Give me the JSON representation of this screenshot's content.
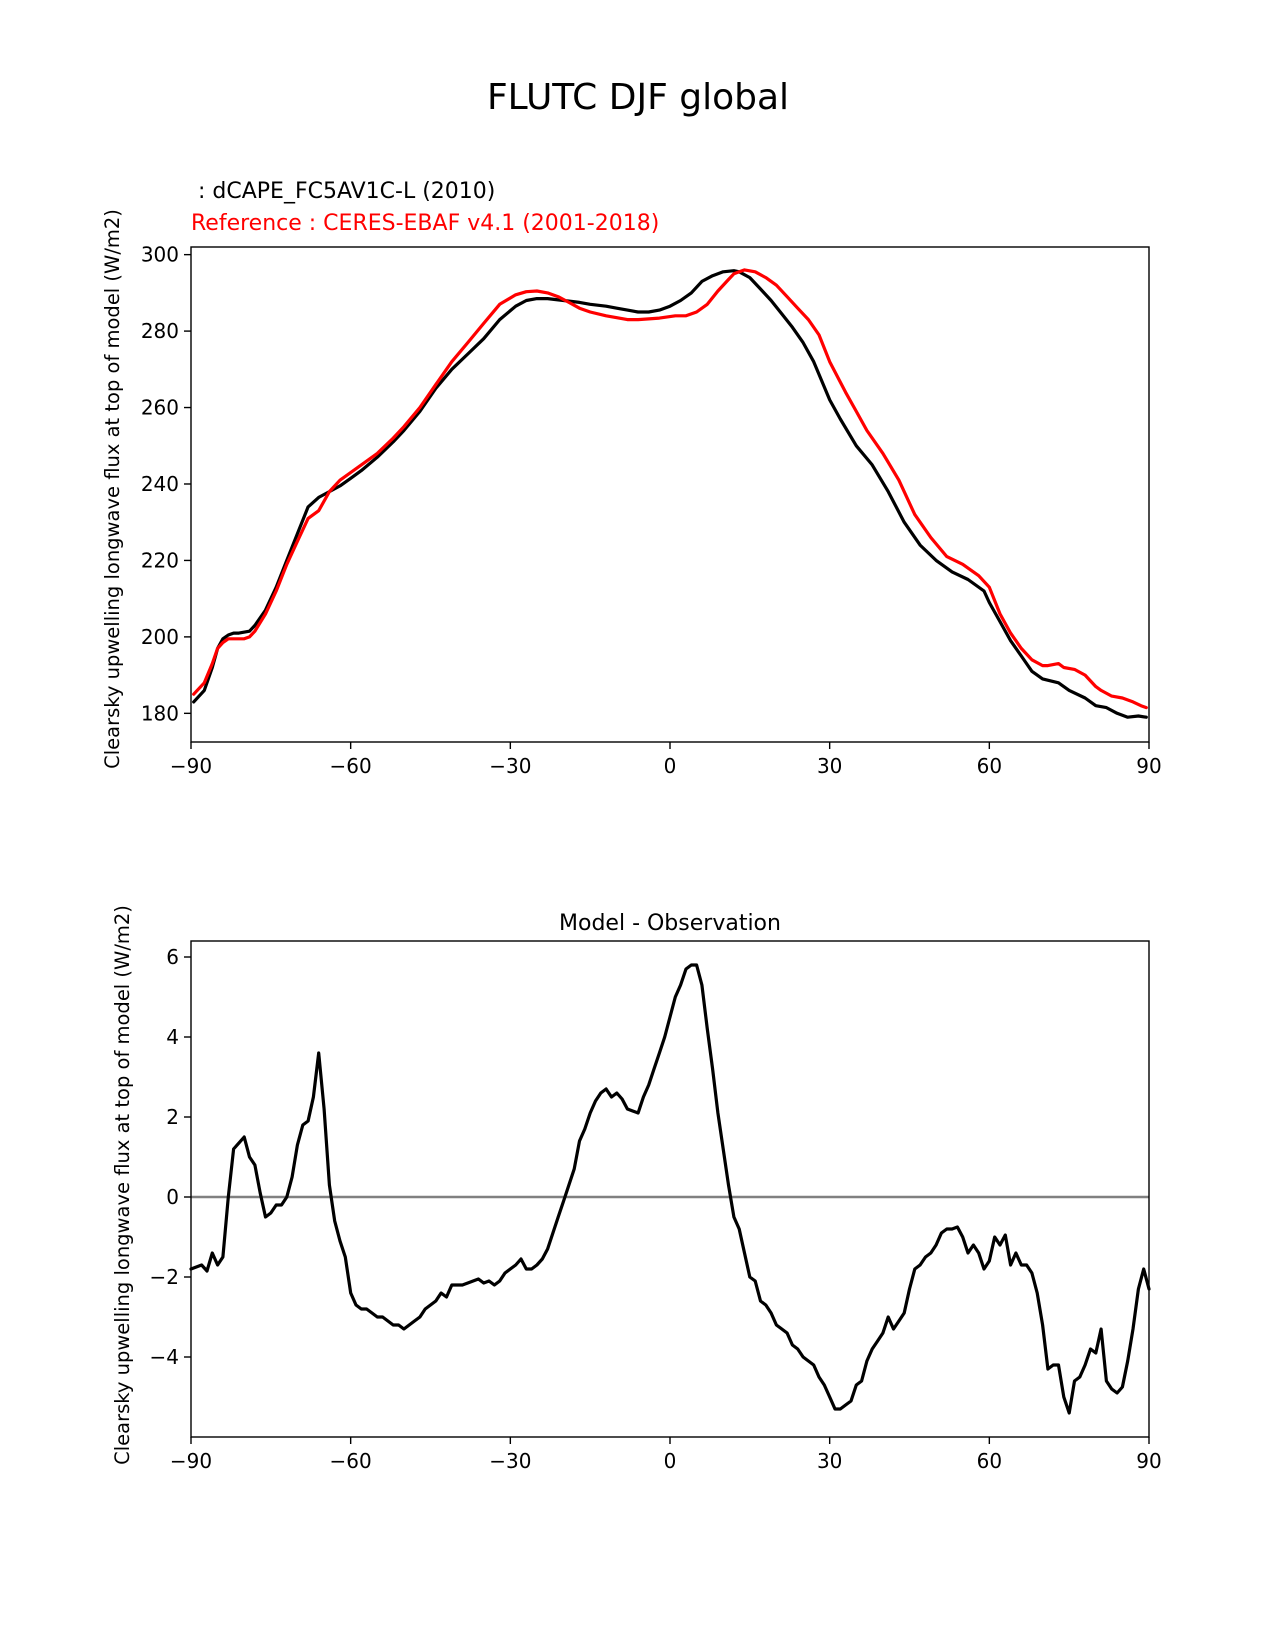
{
  "figure": {
    "suptitle": "FLUTC DJF global"
  },
  "colors": {
    "model": "#000000",
    "reference": "#ff0000",
    "zero_line": "#808080",
    "axis": "#000000"
  },
  "chart_data": [
    {
      "type": "line",
      "model_label": " : dCAPE_FC5AV1C-L (2010)",
      "reference_label": "Reference : CERES-EBAF v4.1 (2001-2018)",
      "title": "",
      "xlabel": "",
      "ylabel": "Clearsky upwelling longwave flux at top of model (W/m2)",
      "xlim": [
        -90,
        90
      ],
      "ylim": [
        172.5,
        302
      ],
      "xticks": [
        -90,
        -60,
        -30,
        0,
        30,
        60,
        90
      ],
      "xtick_labels": [
        "−90",
        "−60",
        "−30",
        "0",
        "30",
        "60",
        "90"
      ],
      "yticks": [
        180,
        200,
        220,
        240,
        260,
        280,
        300
      ],
      "ytick_labels": [
        "180",
        "200",
        "220",
        "240",
        "260",
        "280",
        "300"
      ],
      "grid": false,
      "series": [
        {
          "name": "dCAPE_FC5AV1C-L (2010)",
          "color": "#000000",
          "x": [
            -89.5,
            -87.5,
            -86,
            -85,
            -84,
            -83,
            -82,
            -81,
            -79,
            -78,
            -76,
            -74,
            -72,
            -70,
            -68,
            -66,
            -64,
            -62,
            -60,
            -58,
            -55,
            -52,
            -50,
            -47,
            -44,
            -41,
            -38,
            -35,
            -32,
            -29,
            -27,
            -25,
            -23,
            -20,
            -17,
            -15,
            -12,
            -10,
            -8,
            -6,
            -4,
            -2,
            0,
            2,
            4,
            6,
            8,
            10,
            12,
            13,
            15,
            17,
            19,
            21,
            23,
            25,
            27,
            30,
            32,
            35,
            38,
            41,
            44,
            47,
            50,
            53,
            56,
            59,
            60,
            62,
            64,
            66,
            68,
            70,
            73,
            75,
            78,
            80,
            82,
            84,
            86,
            88,
            89.5
          ],
          "y": [
            183,
            186,
            192,
            197,
            199.5,
            200.5,
            201,
            201,
            201.5,
            203,
            207,
            213,
            220,
            227,
            234,
            236.5,
            238,
            239.5,
            241.5,
            243.5,
            247,
            251,
            254,
            259,
            265,
            270,
            274,
            278,
            283,
            286.5,
            288,
            288.5,
            288.5,
            288,
            287.5,
            287,
            286.5,
            286,
            285.5,
            285,
            285,
            285.5,
            286.5,
            288,
            290,
            293,
            294.5,
            295.5,
            295.8,
            295.5,
            294,
            291,
            288,
            284.5,
            281,
            277,
            272,
            262,
            257,
            250,
            245,
            238,
            230,
            224,
            220,
            217,
            215,
            212,
            209,
            204,
            199,
            195,
            191,
            189,
            188,
            186,
            184,
            182,
            181.5,
            180,
            179,
            179.3,
            179
          ]
        },
        {
          "name": "CERES-EBAF v4.1 (2001-2018)",
          "color": "#ff0000",
          "x": [
            -89.5,
            -87.5,
            -86,
            -85,
            -84,
            -83,
            -82,
            -80,
            -79,
            -78,
            -76,
            -74,
            -72,
            -70,
            -68,
            -66,
            -64,
            -62,
            -60,
            -58,
            -55,
            -52,
            -50,
            -47,
            -44,
            -41,
            -38,
            -35,
            -32,
            -29,
            -27,
            -25,
            -23,
            -21,
            -19,
            -17,
            -15,
            -12,
            -10,
            -8,
            -6,
            -4,
            -2,
            0,
            1,
            3,
            5,
            7,
            9,
            11,
            12,
            14,
            16,
            18,
            20,
            22,
            24,
            26,
            28,
            30,
            33,
            35,
            37,
            40,
            43,
            46,
            49,
            52,
            55,
            58,
            60,
            62,
            64,
            66,
            68,
            70,
            71,
            73,
            74,
            76,
            78,
            80,
            81,
            83,
            85,
            87,
            88.5,
            89.5
          ],
          "y": [
            185,
            188,
            193,
            197,
            198.5,
            199.5,
            199.5,
            199.5,
            200,
            201.5,
            206,
            212,
            219,
            225,
            231,
            233,
            238,
            241,
            243,
            245,
            248,
            252,
            255,
            260,
            266,
            272,
            277,
            282,
            287,
            289.5,
            290.3,
            290.5,
            290,
            289,
            287.5,
            286,
            285,
            284,
            283.5,
            283,
            283,
            283.2,
            283.4,
            283.8,
            284,
            284,
            285,
            287,
            290.5,
            293.5,
            295,
            296,
            295.5,
            294,
            292,
            289,
            286,
            283,
            279,
            272,
            264,
            259,
            254,
            248,
            241,
            232,
            226,
            221,
            219,
            216,
            213,
            206,
            201,
            197,
            194,
            192.5,
            192.5,
            193,
            192,
            191.5,
            190,
            187,
            186,
            184.5,
            184,
            183,
            182,
            181.5
          ]
        }
      ]
    },
    {
      "type": "line",
      "title": "Model - Observation",
      "xlabel": "",
      "ylabel": "Clearsky upwelling longwave flux at top of model (W/m2)",
      "xlim": [
        -90,
        90
      ],
      "ylim": [
        -6,
        6.4
      ],
      "xticks": [
        -90,
        -60,
        -30,
        0,
        30,
        60,
        90
      ],
      "xtick_labels": [
        "−90",
        "−60",
        "−30",
        "0",
        "30",
        "60",
        "90"
      ],
      "yticks": [
        -4,
        -2,
        0,
        2,
        4,
        6
      ],
      "ytick_labels": [
        "−4",
        "−2",
        "0",
        "2",
        "4",
        "6"
      ],
      "zero_line": 0,
      "grid": false,
      "series": [
        {
          "name": "",
          "color": "#000000",
          "x": [
            -90,
            -88,
            -87,
            -86,
            -85,
            -84,
            -83,
            -82,
            -80,
            -79,
            -78,
            -77,
            -76,
            -75,
            -74,
            -73,
            -72,
            -71,
            -70,
            -69,
            -68,
            -67,
            -66,
            -65,
            -64,
            -63,
            -62,
            -61,
            -60,
            -59,
            -58,
            -57,
            -56,
            -55,
            -54,
            -53,
            -52,
            -51,
            -50,
            -49,
            -48,
            -47,
            -46,
            -45,
            -44,
            -43,
            -42,
            -41,
            -40,
            -39,
            -38,
            -37,
            -36,
            -35,
            -34,
            -33,
            -32,
            -31,
            -30,
            -29,
            -28,
            -27,
            -26,
            -25,
            -24,
            -23,
            -22,
            -21,
            -20,
            -19,
            -18,
            -17,
            -16,
            -15,
            -14,
            -13,
            -12,
            -11,
            -10,
            -9,
            -8,
            -7,
            -6,
            -5,
            -4,
            -3,
            -2,
            -1,
            0,
            1,
            2,
            3,
            4,
            5,
            6,
            7,
            8,
            9,
            10,
            11,
            12,
            13,
            14,
            15,
            16,
            17,
            18,
            19,
            20,
            21,
            22,
            23,
            24,
            25,
            26,
            27,
            28,
            29,
            30,
            31,
            32,
            33,
            34,
            35,
            36,
            37,
            38,
            39,
            40,
            41,
            42,
            43,
            44,
            45,
            46,
            47,
            48,
            49,
            50,
            51,
            52,
            53,
            54,
            55,
            56,
            57,
            58,
            59,
            60,
            61,
            62,
            63,
            64,
            65,
            66,
            67,
            68,
            69,
            70,
            71,
            72,
            73,
            74,
            75,
            76,
            77,
            78,
            79,
            80,
            81,
            82,
            83,
            84,
            85,
            86,
            87,
            88,
            89,
            90
          ],
          "y": [
            -1.8,
            -1.7,
            -1.85,
            -1.4,
            -1.7,
            -1.5,
            0,
            1.2,
            1.5,
            1.0,
            0.8,
            0.1,
            -0.5,
            -0.4,
            -0.2,
            -0.2,
            0.0,
            0.5,
            1.3,
            1.8,
            1.9,
            2.5,
            3.6,
            2.2,
            0.3,
            -0.6,
            -1.1,
            -1.5,
            -2.4,
            -2.7,
            -2.8,
            -2.8,
            -2.9,
            -3.0,
            -3.0,
            -3.1,
            -3.2,
            -3.2,
            -3.3,
            -3.2,
            -3.1,
            -3.0,
            -2.8,
            -2.7,
            -2.6,
            -2.4,
            -2.5,
            -2.2,
            -2.2,
            -2.2,
            -2.15,
            -2.1,
            -2.05,
            -2.15,
            -2.1,
            -2.2,
            -2.1,
            -1.9,
            -1.8,
            -1.7,
            -1.55,
            -1.8,
            -1.8,
            -1.7,
            -1.55,
            -1.3,
            -0.9,
            -0.5,
            -0.1,
            0.3,
            0.7,
            1.4,
            1.7,
            2.1,
            2.4,
            2.6,
            2.7,
            2.5,
            2.6,
            2.45,
            2.2,
            2.15,
            2.1,
            2.5,
            2.8,
            3.2,
            3.6,
            4.0,
            4.5,
            5.0,
            5.3,
            5.7,
            5.8,
            5.8,
            5.3,
            4.2,
            3.2,
            2.1,
            1.2,
            0.3,
            -0.5,
            -0.8,
            -1.4,
            -2.0,
            -2.1,
            -2.6,
            -2.7,
            -2.9,
            -3.2,
            -3.3,
            -3.4,
            -3.7,
            -3.8,
            -4.0,
            -4.1,
            -4.2,
            -4.5,
            -4.7,
            -5.0,
            -5.3,
            -5.3,
            -5.2,
            -5.1,
            -4.7,
            -4.6,
            -4.1,
            -3.8,
            -3.6,
            -3.4,
            -3.0,
            -3.3,
            -3.1,
            -2.9,
            -2.3,
            -1.8,
            -1.7,
            -1.5,
            -1.4,
            -1.2,
            -0.9,
            -0.8,
            -0.8,
            -0.75,
            -1.0,
            -1.4,
            -1.2,
            -1.4,
            -1.8,
            -1.6,
            -1.0,
            -1.2,
            -0.95,
            -1.7,
            -1.4,
            -1.7,
            -1.7,
            -1.9,
            -2.4,
            -3.2,
            -4.3,
            -4.2,
            -4.2,
            -5.0,
            -5.4,
            -4.6,
            -4.5,
            -4.2,
            -3.8,
            -3.9,
            -3.3,
            -4.6,
            -4.8,
            -4.9,
            -4.75,
            -4.1,
            -3.3,
            -2.3,
            -1.8,
            -2.3
          ]
        }
      ]
    }
  ]
}
